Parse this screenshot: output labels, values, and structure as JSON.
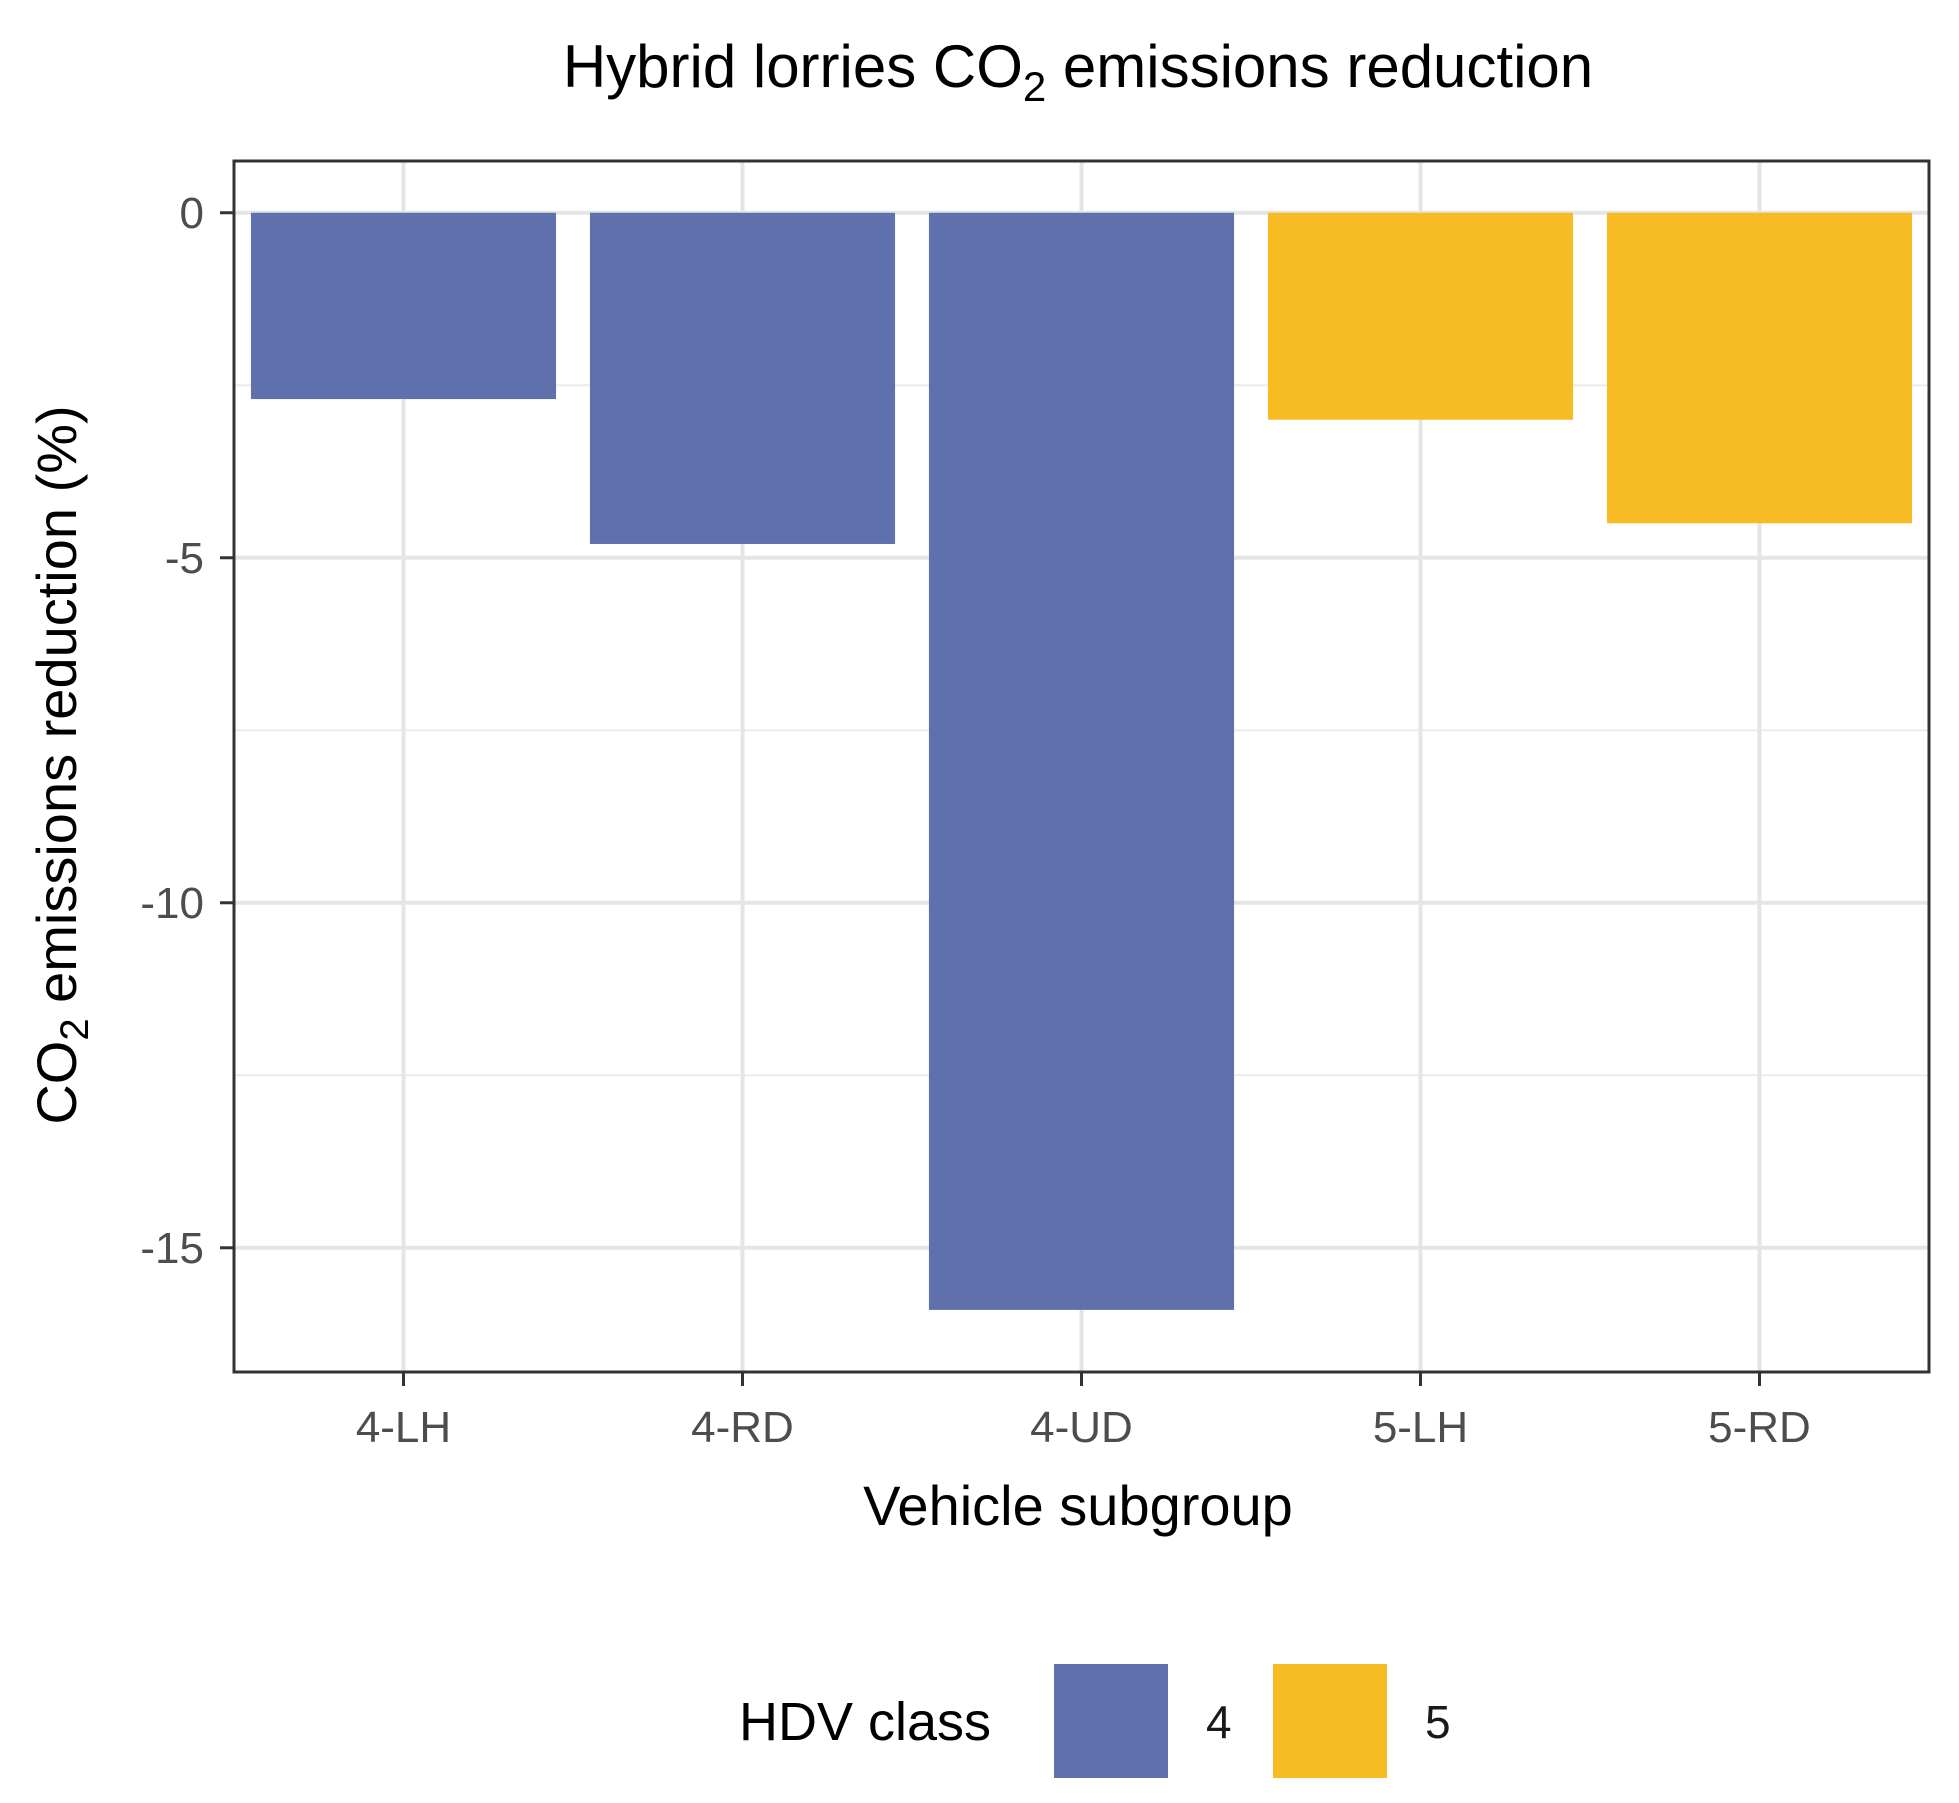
{
  "chart_data": {
    "type": "bar",
    "title_parts": [
      "Hybrid lorries  CO",
      "2",
      " emissions reduction"
    ],
    "xlabel": "Vehicle subgroup",
    "ylabel_parts": [
      "CO",
      "2",
      " emissions reduction (%)"
    ],
    "categories": [
      "4-LH",
      "4-RD",
      "4-UD",
      "5-LH",
      "5-RD"
    ],
    "values": [
      -2.7,
      -4.8,
      -15.9,
      -3.0,
      -4.5
    ],
    "groups": [
      "4",
      "4",
      "4",
      "5",
      "5"
    ],
    "ylim": [
      -16.8,
      0.75
    ],
    "yticks": [
      0,
      -5,
      -10,
      -15
    ],
    "ytick_labels": [
      "0",
      "-5",
      "-10",
      "-15"
    ],
    "grid": true,
    "legend": {
      "title": "HDV class",
      "position": "bottom",
      "entries": [
        {
          "label": "4",
          "color": "#5f70ad"
        },
        {
          "label": "5",
          "color": "#f7bb24"
        }
      ]
    }
  }
}
